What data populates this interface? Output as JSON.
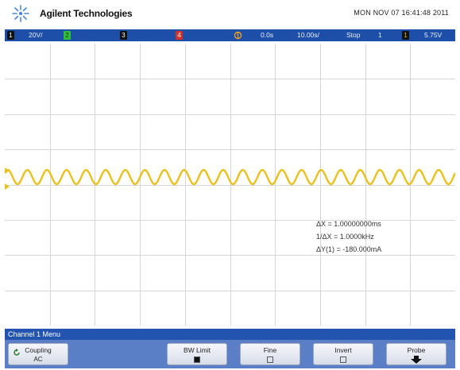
{
  "header": {
    "brand": "Agilent Technologies",
    "datetime": "MON NOV 07 16:41:48 2011"
  },
  "status_bar": {
    "ch1_num": "1",
    "ch1_scale": "20V/",
    "ch2_num": "2",
    "ch3_num": "3",
    "ch4_num": "4",
    "trig_delay": "0.0s",
    "time_scale": "10.00s/",
    "run_state": "Stop",
    "trig_source": "1",
    "trig_level": "5.75V",
    "colors": {
      "bar": "#1e4fa8",
      "ch1": "#e8c11f",
      "ch2": "#2fbf3a",
      "ch3": "#2e7de0",
      "ch4": "#d0322a",
      "trigger": "#f0a020"
    }
  },
  "waveform": {
    "channel": "1",
    "color": "#e8c11f",
    "cycles_visible": 23
  },
  "measurements": {
    "delta_x": "ΔX = 1.00000000ms",
    "inv_delta_x": "1/ΔX = 1.0000kHz",
    "delta_y": "ΔY(1) = -180.000mA"
  },
  "menu": {
    "title": "Channel 1 Menu",
    "softkeys": [
      {
        "label": "Coupling",
        "value": "AC"
      },
      {
        "label": "BW Limit",
        "value": ""
      },
      {
        "label": "Fine",
        "value": ""
      },
      {
        "label": "Invert",
        "value": ""
      },
      {
        "label": "Probe",
        "value": ""
      }
    ]
  }
}
